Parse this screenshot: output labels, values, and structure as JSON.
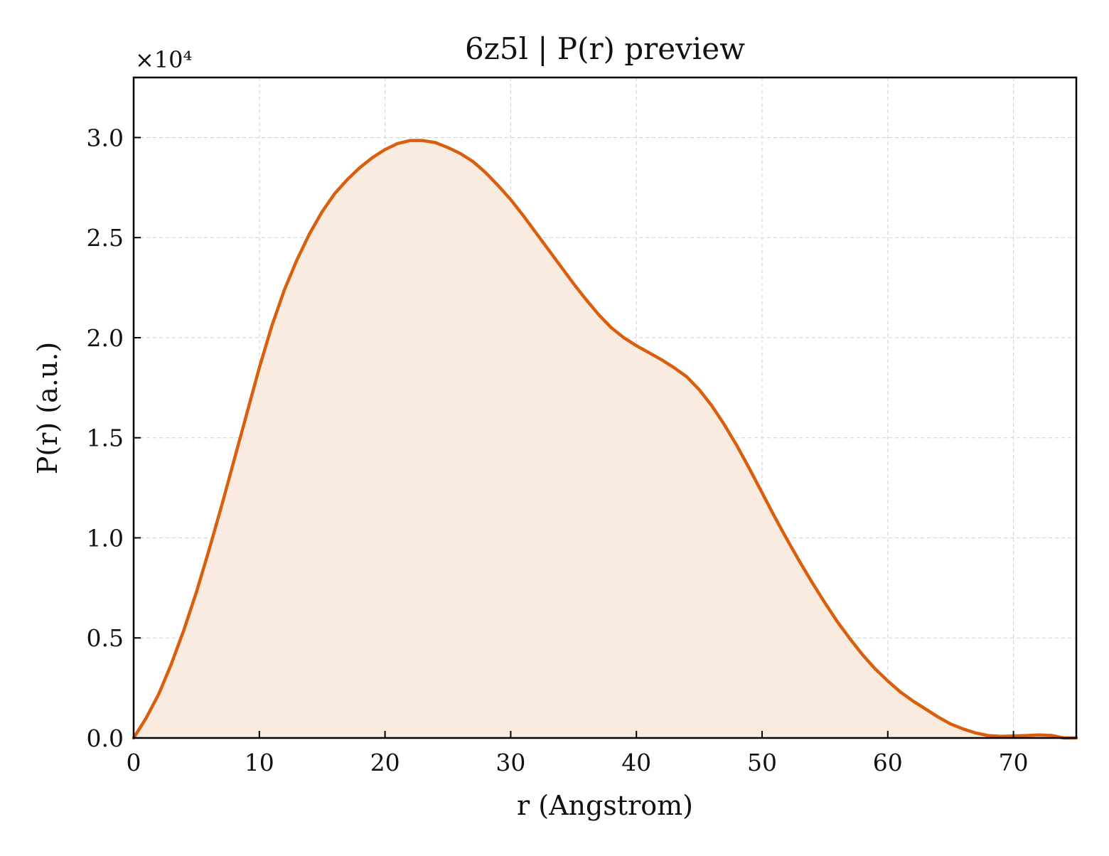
{
  "chart_data": {
    "type": "area",
    "title": "6z5l | P(r) preview",
    "xlabel": "r (Angstrom)",
    "ylabel": "P(r) (a.u.)",
    "y_multiplier_label": "×10⁴",
    "xlim": [
      0,
      75
    ],
    "ylim": [
      0,
      3.3
    ],
    "xticks": [
      0,
      10,
      20,
      30,
      40,
      50,
      60,
      70
    ],
    "yticks": [
      0.0,
      0.5,
      1.0,
      1.5,
      2.0,
      2.5,
      3.0
    ],
    "grid": true,
    "colors": {
      "line": "#d95f0e",
      "fill": "#f9ebe0"
    },
    "series": [
      {
        "x": [
          0,
          1,
          2,
          3,
          4,
          5,
          6,
          7,
          8,
          9,
          10,
          11,
          12,
          13,
          14,
          15,
          16,
          17,
          18,
          19,
          20,
          21,
          22,
          23,
          24,
          25,
          26,
          27,
          28,
          29,
          30,
          31,
          32,
          33,
          34,
          35,
          36,
          37,
          38,
          39,
          40,
          41,
          42,
          43,
          44,
          45,
          46,
          47,
          48,
          49,
          50,
          51,
          52,
          53,
          54,
          55,
          56,
          57,
          58,
          59,
          60,
          61,
          62,
          63,
          64,
          65,
          66,
          67,
          68,
          69,
          70,
          71,
          72,
          73,
          74,
          75
        ],
        "y": [
          0.0,
          0.1,
          0.22,
          0.37,
          0.54,
          0.73,
          0.94,
          1.16,
          1.39,
          1.62,
          1.85,
          2.06,
          2.24,
          2.39,
          2.52,
          2.63,
          2.72,
          2.79,
          2.85,
          2.9,
          2.94,
          2.97,
          2.985,
          2.985,
          2.975,
          2.95,
          2.92,
          2.88,
          2.825,
          2.76,
          2.69,
          2.61,
          2.525,
          2.44,
          2.355,
          2.27,
          2.19,
          2.115,
          2.05,
          2.0,
          1.96,
          1.925,
          1.89,
          1.85,
          1.805,
          1.74,
          1.66,
          1.565,
          1.46,
          1.345,
          1.225,
          1.105,
          0.99,
          0.88,
          0.775,
          0.675,
          0.58,
          0.495,
          0.415,
          0.345,
          0.285,
          0.23,
          0.185,
          0.145,
          0.105,
          0.07,
          0.045,
          0.025,
          0.012,
          0.008,
          0.01,
          0.012,
          0.015,
          0.013,
          0.0,
          0.0
        ]
      }
    ]
  }
}
